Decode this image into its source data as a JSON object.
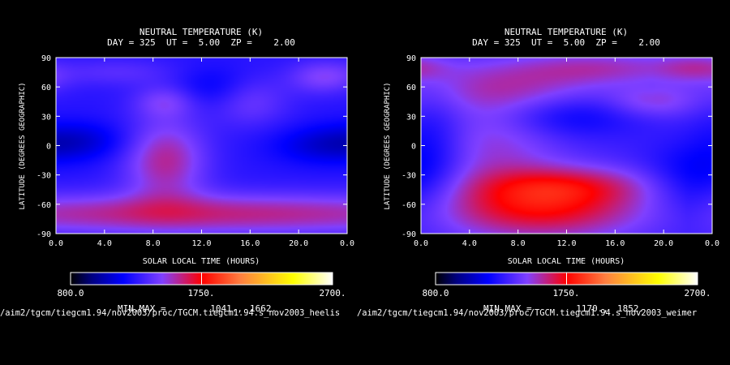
{
  "chart_data": [
    {
      "type": "heatmap",
      "title": "NEUTRAL TEMPERATURE (K)",
      "subtitle": "DAY = 325  UT =  5.00  ZP =    2.00",
      "xlabel": "SOLAR LOCAL TIME (HOURS)",
      "ylabel": "LATITUDE (DEGREES GEOGRAPHIC)",
      "xlim": [
        0,
        24
      ],
      "ylim": [
        -90,
        90
      ],
      "x_ticks": [
        "0.0",
        "4.0",
        "8.0",
        "12.0",
        "16.0",
        "20.0",
        "0.0"
      ],
      "y_ticks": [
        "90",
        "60",
        "30",
        "0",
        "-30",
        "-60",
        "-90"
      ],
      "colorbar": {
        "min_label": "800.0",
        "mid_label": "1750.",
        "max_label": "2700.",
        "min": 800,
        "max": 2700
      },
      "min_max_label": "MIN,MAX =",
      "min_value": "1041.,",
      "max_value": "1662.",
      "min": 1041,
      "max": 1662,
      "blobs": [
        {
          "x": 12,
          "y": -70,
          "sx": 20,
          "sy": 15,
          "a": 0.8
        },
        {
          "x": 9,
          "y": -15,
          "sx": 2.4,
          "sy": 30,
          "a": 0.75
        },
        {
          "x": 5,
          "y": 75,
          "sx": 3.5,
          "sy": 10,
          "a": 0.25
        },
        {
          "x": 9,
          "y": 45,
          "sx": 1.8,
          "sy": 12,
          "a": 0.4
        },
        {
          "x": 16,
          "y": 45,
          "sx": 2.2,
          "sy": 18,
          "a": 0.35
        },
        {
          "x": 22,
          "y": 70,
          "sx": 2,
          "sy": 12,
          "a": 0.45
        },
        {
          "x": 2,
          "y": 5,
          "sx": 3,
          "sy": 14,
          "a": -0.35
        },
        {
          "x": 22,
          "y": 0,
          "sx": 3,
          "sy": 14,
          "a": -0.35
        },
        {
          "x": 13,
          "y": 60,
          "sx": 2.2,
          "sy": 15,
          "a": -0.25
        }
      ]
    },
    {
      "type": "heatmap",
      "title": "NEUTRAL TEMPERATURE (K)",
      "subtitle": "DAY = 325  UT =  5.00  ZP =    2.00",
      "xlabel": "SOLAR LOCAL TIME (HOURS)",
      "ylabel": "LATITUDE (DEGREES GEOGRAPHIC)",
      "xlim": [
        0,
        24
      ],
      "ylim": [
        -90,
        90
      ],
      "x_ticks": [
        "0.0",
        "4.0",
        "8.0",
        "12.0",
        "16.0",
        "20.0",
        "0.0"
      ],
      "y_ticks": [
        "90",
        "60",
        "30",
        "0",
        "-30",
        "-60",
        "-90"
      ],
      "colorbar": {
        "min_label": "800.0",
        "mid_label": "1750.",
        "max_label": "2700.",
        "min": 800,
        "max": 2700
      },
      "min_max_label": "MIN,MAX =",
      "min_value": "1170.,",
      "max_value": "1852.",
      "min": 1170,
      "max": 1852,
      "blobs": [
        {
          "x": 10,
          "y": -65,
          "sx": 6,
          "sy": 22,
          "a": 1.0
        },
        {
          "x": 12,
          "y": -40,
          "sx": 5,
          "sy": 14,
          "a": 0.6
        },
        {
          "x": 6,
          "y": 0,
          "sx": 4,
          "sy": 35,
          "a": 0.45
        },
        {
          "x": 7,
          "y": 60,
          "sx": 6,
          "sy": 20,
          "a": 0.5
        },
        {
          "x": 15,
          "y": 80,
          "sx": 5,
          "sy": 12,
          "a": 0.45
        },
        {
          "x": 19,
          "y": 45,
          "sx": 2.5,
          "sy": 12,
          "a": 0.4
        },
        {
          "x": 23,
          "y": 80,
          "sx": 2.5,
          "sy": 10,
          "a": 0.4
        },
        {
          "x": 1,
          "y": 0,
          "sx": 2,
          "sy": 40,
          "a": -0.35
        },
        {
          "x": 22,
          "y": -30,
          "sx": 2.5,
          "sy": 25,
          "a": -0.35
        },
        {
          "x": 12,
          "y": 30,
          "sx": 4,
          "sy": 15,
          "a": -0.4
        }
      ]
    }
  ],
  "colorbar_gradient": [
    "#000000",
    "#000080",
    "#0000ff",
    "#8040ff",
    "#ff0000",
    "#ff8040",
    "#ffff00",
    "#ffffff"
  ],
  "file_paths": [
    "/aim2/tgcm/tiegcm1.94/nov2003/proc/TGCM.tiegcm1.94.s_nov2003_heelis",
    "/aim2/tgcm/tiegcm1.94/nov2003/proc/TGCM.tiegcm1.94.s_nov2003_weimer"
  ]
}
